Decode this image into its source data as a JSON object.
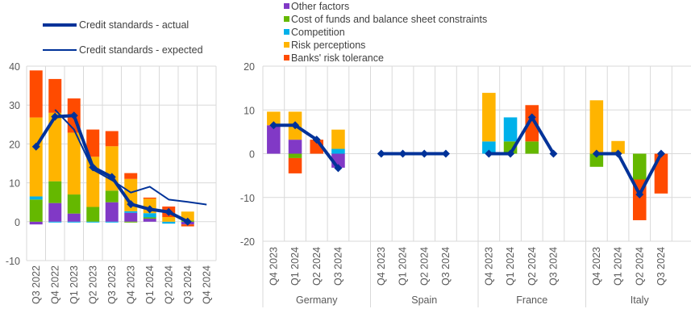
{
  "chart_data": [
    {
      "type": "bar",
      "subtype": "stacked-bar-with-lines",
      "title": "",
      "xlabel": "",
      "ylabel": "",
      "ylim": [
        -10,
        40
      ],
      "yticks": [
        -10,
        0,
        10,
        20,
        30,
        40
      ],
      "grid": true,
      "categories": [
        "Q3 2022",
        "Q4 2022",
        "Q1 2023",
        "Q2 2023",
        "Q3 2023",
        "Q4 2023",
        "Q1 2024",
        "Q2 2024",
        "Q3 2024",
        "Q4 2024"
      ],
      "series": [
        {
          "name": "Other factors",
          "kind": "bar",
          "values": [
            -0.7,
            4.8,
            2.1,
            0.0,
            5.0,
            2.3,
            0.8,
            0.0,
            -0.7,
            null
          ]
        },
        {
          "name": "Cost of funds and balance sheet constraints",
          "kind": "bar",
          "values": [
            5.7,
            5.6,
            4.9,
            3.8,
            3.0,
            -0.2,
            0.3,
            0.0,
            0.3,
            null
          ]
        },
        {
          "name": "Competition",
          "kind": "bar",
          "values": [
            0.8,
            -0.2,
            -0.2,
            -0.2,
            -0.2,
            0.4,
            1.1,
            -0.5,
            0.0,
            null
          ]
        },
        {
          "name": "Risk perceptions",
          "kind": "bar",
          "values": [
            20.3,
            17.6,
            15.9,
            12.9,
            11.4,
            8.3,
            3.7,
            1.2,
            2.3,
            null
          ]
        },
        {
          "name": "Banks' risk tolerance",
          "kind": "bar",
          "values": [
            12.1,
            8.7,
            8.8,
            7.0,
            3.9,
            1.5,
            0.3,
            2.7,
            -0.5,
            null
          ]
        },
        {
          "name": "Credit standards - actual",
          "kind": "line-markers",
          "values": [
            19.3,
            27.0,
            27.3,
            14.0,
            11.5,
            4.5,
            3.2,
            2.5,
            0.0,
            null
          ]
        },
        {
          "name": "Credit standards - expected",
          "kind": "line",
          "values": [
            null,
            28.8,
            23.7,
            13.4,
            10.7,
            7.5,
            9.0,
            5.7,
            5.1,
            4.4
          ]
        }
      ],
      "legend": {
        "position": "top-left",
        "entries": [
          "Credit standards - actual",
          "Credit standards - expected"
        ]
      }
    },
    {
      "type": "bar",
      "subtype": "stacked-bar-with-line-grouped",
      "title": "",
      "xlabel": "",
      "ylabel": "",
      "ylim": [
        -20,
        20
      ],
      "yticks": [
        -20,
        -10,
        0,
        10,
        20
      ],
      "grid": true,
      "groups": [
        "Germany",
        "Spain",
        "France",
        "Italy"
      ],
      "categories": [
        "Q4 2023",
        "Q1 2024",
        "Q2 2024",
        "Q3 2024"
      ],
      "series": [
        {
          "name": "Other factors",
          "kind": "bar",
          "values": {
            "Germany": [
              6.5,
              3.2,
              0.0,
              -3.2
            ],
            "Spain": [
              0,
              0,
              0,
              0
            ],
            "France": [
              0,
              0,
              0,
              0
            ],
            "Italy": [
              0,
              0,
              0,
              0
            ]
          }
        },
        {
          "name": "Cost of funds and balance sheet constraints",
          "kind": "bar",
          "values": {
            "Germany": [
              0.0,
              -1.0,
              0.0,
              0.0
            ],
            "Spain": [
              0,
              0,
              0,
              0
            ],
            "France": [
              0.0,
              2.8,
              2.8,
              0.0
            ],
            "Italy": [
              -3.0,
              0.0,
              -5.9,
              0.0
            ]
          }
        },
        {
          "name": "Competition",
          "kind": "bar",
          "values": {
            "Germany": [
              0.0,
              0.0,
              0.0,
              1.1
            ],
            "Spain": [
              0,
              0,
              0,
              0
            ],
            "France": [
              2.8,
              5.5,
              0.0,
              0.0
            ],
            "Italy": [
              0,
              0,
              0,
              0
            ]
          }
        },
        {
          "name": "Risk perceptions",
          "kind": "bar",
          "values": {
            "Germany": [
              3.1,
              6.4,
              0.0,
              4.4
            ],
            "Spain": [
              0,
              0,
              0,
              0
            ],
            "France": [
              11.1,
              0.0,
              0.0,
              0.0
            ],
            "Italy": [
              12.2,
              2.9,
              0.0,
              0.0
            ]
          }
        },
        {
          "name": "Banks' risk tolerance",
          "kind": "bar",
          "values": {
            "Germany": [
              0.0,
              -3.5,
              3.2,
              0.0
            ],
            "Spain": [
              0,
              0,
              0,
              0
            ],
            "France": [
              0.0,
              0.0,
              8.3,
              0.0
            ],
            "Italy": [
              0.0,
              0.0,
              -9.3,
              -9.1
            ]
          }
        },
        {
          "name": "Credit standards - actual",
          "kind": "line-markers",
          "values": {
            "Germany": [
              6.5,
              6.5,
              3.2,
              -3.3
            ],
            "Spain": [
              0,
              0,
              0,
              0
            ],
            "France": [
              0.0,
              0.0,
              8.3,
              0.0
            ],
            "Italy": [
              0.0,
              0.0,
              -9.3,
              0.0
            ]
          }
        }
      ],
      "legend": {
        "position": "top",
        "entries": [
          "Other factors",
          "Cost of funds and balance sheet constraints",
          "Competition",
          "Risk perceptions",
          "Banks' risk tolerance"
        ]
      }
    }
  ],
  "colors": {
    "Other factors": "#8139c6",
    "Cost of funds and balance sheet constraints": "#65b800",
    "Competition": "#00b1ea",
    "Risk perceptions": "#ffb400",
    "Banks' risk tolerance": "#ff4b00",
    "line": "#003299",
    "grid": "#d9d9d9",
    "axis_text": "#595959"
  }
}
